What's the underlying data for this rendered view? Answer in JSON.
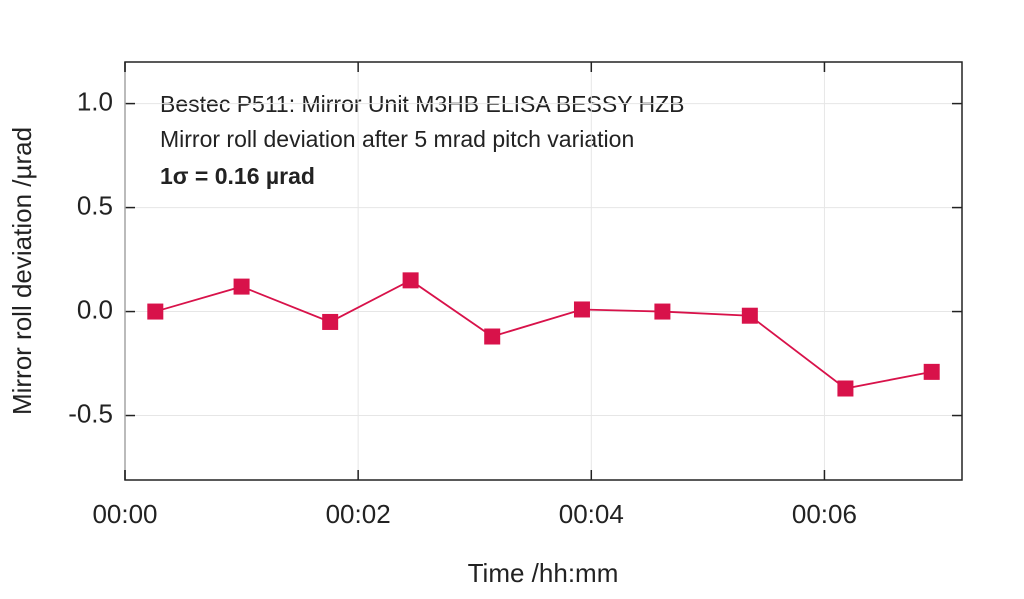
{
  "chart_data": {
    "type": "line",
    "annotations": [
      "Bestec P511: Mirror Unit M3HB ELISA BESSY HZB",
      "Mirror roll deviation after 5 mrad pitch variation",
      "1σ = 0.16 µrad"
    ],
    "xlabel": "Time /hh:mm",
    "ylabel": "Mirror roll deviation /µrad",
    "series": [
      {
        "name": "Mirror roll deviation",
        "color": "#d8124a",
        "x": [
          0.26,
          1.0,
          1.76,
          2.45,
          3.15,
          3.92,
          4.61,
          5.36,
          6.18,
          6.92
        ],
        "values": [
          0.0,
          0.12,
          -0.05,
          0.15,
          -0.12,
          0.01,
          0.0,
          -0.02,
          -0.37,
          -0.29
        ]
      }
    ],
    "xlim": [
      0,
      7.18
    ],
    "xticks": [
      {
        "value": 0,
        "label": "00:00"
      },
      {
        "value": 2,
        "label": "00:02"
      },
      {
        "value": 4,
        "label": "00:04"
      },
      {
        "value": 6,
        "label": "00:06"
      }
    ],
    "ylim": [
      -0.81,
      1.2
    ],
    "yticks": [
      {
        "value": 1.0,
        "label": "1.0"
      },
      0.5,
      {
        "value": 0.0,
        "label": "0.0"
      },
      -0.5
    ],
    "grid": true
  }
}
